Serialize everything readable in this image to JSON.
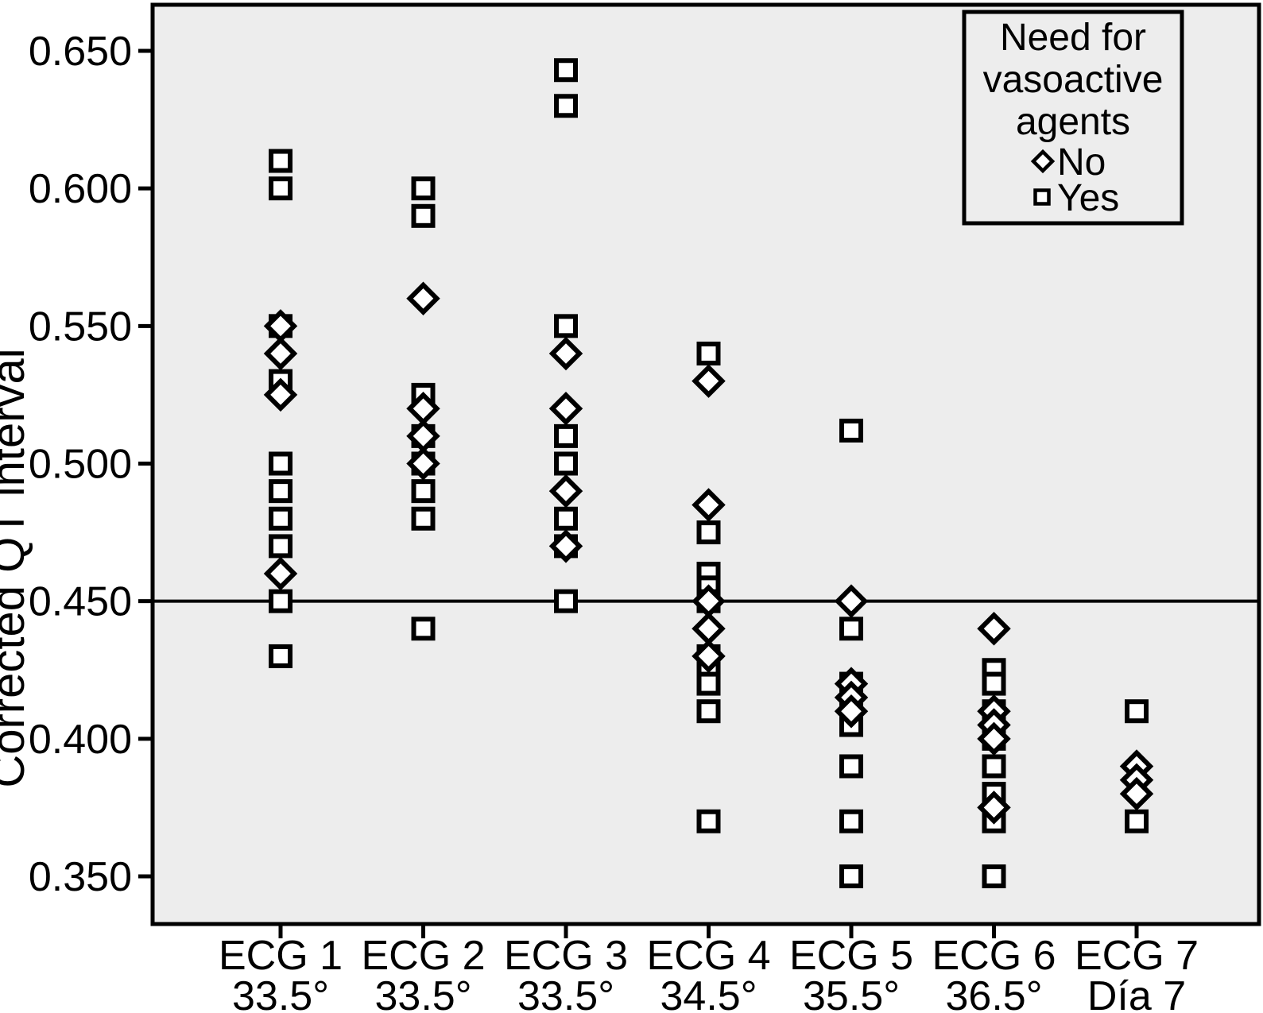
{
  "figure": {
    "background": "#ffffff",
    "plot_background": "#ededed",
    "ink_color": "#000000"
  },
  "chart_data": {
    "type": "scatter",
    "title": "",
    "xlabel": "",
    "ylabel": "Corrected QT interval",
    "ylim": [
      0.333,
      0.667
    ],
    "grid": false,
    "reference_line_y": 0.45,
    "y_ticks": [
      "0.650",
      "0.600",
      "0.550",
      "0.500",
      "0.450",
      "0.400",
      "0.350"
    ],
    "categories": [
      {
        "label": "ECG 1",
        "sublabel": "33.5°"
      },
      {
        "label": "ECG 2",
        "sublabel": "33.5°"
      },
      {
        "label": "ECG 3",
        "sublabel": "33.5°"
      },
      {
        "label": "ECG 4",
        "sublabel": "34.5°"
      },
      {
        "label": "ECG 5",
        "sublabel": "35.5°"
      },
      {
        "label": "ECG 6",
        "sublabel": "36.5°"
      },
      {
        "label": "ECG 7",
        "sublabel": "Día 7"
      }
    ],
    "legend": {
      "position": "top-right",
      "title_lines": [
        "Need for",
        "vasoactive",
        "agents"
      ],
      "entries": [
        {
          "label": "No",
          "marker": "diamond"
        },
        {
          "label": "Yes",
          "marker": "square"
        }
      ]
    },
    "series": [
      {
        "name": "Yes",
        "marker": "square",
        "points": [
          [
            1,
            0.61
          ],
          [
            1,
            0.6
          ],
          [
            1,
            0.55
          ],
          [
            1,
            0.53
          ],
          [
            1,
            0.5
          ],
          [
            1,
            0.49
          ],
          [
            1,
            0.48
          ],
          [
            1,
            0.47
          ],
          [
            1,
            0.45
          ],
          [
            1,
            0.43
          ],
          [
            2,
            0.6
          ],
          [
            2,
            0.59
          ],
          [
            2,
            0.525
          ],
          [
            2,
            0.51
          ],
          [
            2,
            0.5
          ],
          [
            2,
            0.49
          ],
          [
            2,
            0.48
          ],
          [
            2,
            0.44
          ],
          [
            3,
            0.643
          ],
          [
            3,
            0.63
          ],
          [
            3,
            0.55
          ],
          [
            3,
            0.51
          ],
          [
            3,
            0.5
          ],
          [
            3,
            0.48
          ],
          [
            3,
            0.47
          ],
          [
            3,
            0.45
          ],
          [
            4,
            0.54
          ],
          [
            4,
            0.475
          ],
          [
            4,
            0.46
          ],
          [
            4,
            0.455
          ],
          [
            4,
            0.45
          ],
          [
            4,
            0.43
          ],
          [
            4,
            0.425
          ],
          [
            4,
            0.42
          ],
          [
            4,
            0.41
          ],
          [
            4,
            0.37
          ],
          [
            5,
            0.512
          ],
          [
            5,
            0.44
          ],
          [
            5,
            0.42
          ],
          [
            5,
            0.41
          ],
          [
            5,
            0.405
          ],
          [
            5,
            0.39
          ],
          [
            5,
            0.37
          ],
          [
            5,
            0.35
          ],
          [
            6,
            0.425
          ],
          [
            6,
            0.42
          ],
          [
            6,
            0.41
          ],
          [
            6,
            0.4
          ],
          [
            6,
            0.39
          ],
          [
            6,
            0.38
          ],
          [
            6,
            0.37
          ],
          [
            6,
            0.35
          ],
          [
            7,
            0.41
          ],
          [
            7,
            0.37
          ]
        ]
      },
      {
        "name": "No",
        "marker": "diamond",
        "points": [
          [
            1,
            0.55
          ],
          [
            1,
            0.54
          ],
          [
            1,
            0.525
          ],
          [
            1,
            0.46
          ],
          [
            2,
            0.56
          ],
          [
            2,
            0.52
          ],
          [
            2,
            0.51
          ],
          [
            2,
            0.5
          ],
          [
            3,
            0.54
          ],
          [
            3,
            0.52
          ],
          [
            3,
            0.49
          ],
          [
            3,
            0.47
          ],
          [
            4,
            0.53
          ],
          [
            4,
            0.485
          ],
          [
            4,
            0.45
          ],
          [
            4,
            0.44
          ],
          [
            4,
            0.43
          ],
          [
            5,
            0.45
          ],
          [
            5,
            0.42
          ],
          [
            5,
            0.415
          ],
          [
            5,
            0.41
          ],
          [
            6,
            0.44
          ],
          [
            6,
            0.41
          ],
          [
            6,
            0.405
          ],
          [
            6,
            0.4
          ],
          [
            6,
            0.375
          ],
          [
            7,
            0.39
          ],
          [
            7,
            0.385
          ],
          [
            7,
            0.38
          ]
        ]
      }
    ]
  }
}
